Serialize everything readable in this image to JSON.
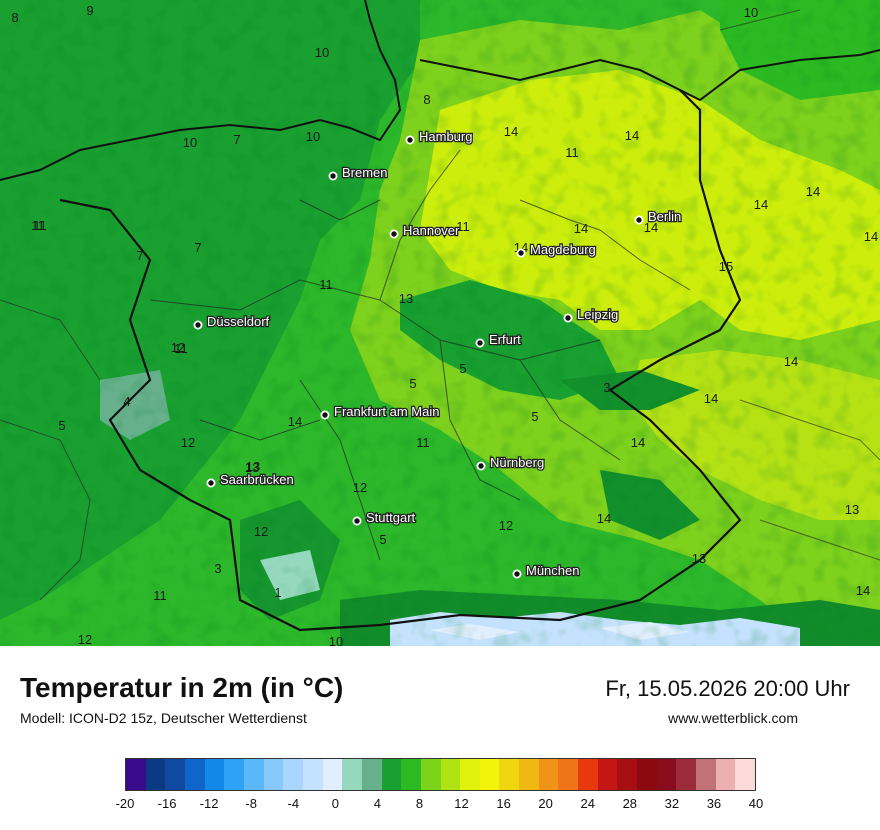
{
  "map": {
    "cities": [
      {
        "name": "Hamburg"
      },
      {
        "name": "Bremen"
      },
      {
        "name": "Hannover"
      },
      {
        "name": "Berlin"
      },
      {
        "name": "Magdeburg"
      },
      {
        "name": "Leipzig"
      },
      {
        "name": "Düsseldorf"
      },
      {
        "name": "Erfurt"
      },
      {
        "name": "Frankfurt am Main"
      },
      {
        "name": "Nürnberg"
      },
      {
        "name": "Saarbrücken"
      },
      {
        "name": "Stuttgart"
      },
      {
        "name": "München"
      }
    ],
    "values": [
      "9",
      "8",
      "10",
      "10",
      "8",
      "7",
      "10",
      "10",
      "11",
      "7",
      "7",
      "11",
      "11",
      "14",
      "14",
      "11",
      "14",
      "14",
      "14",
      "14",
      "14",
      "14",
      "13",
      "15",
      "13",
      "13",
      "11",
      "5",
      "5",
      "5",
      "4",
      "3",
      "14",
      "14",
      "12",
      "14",
      "12",
      "13",
      "11",
      "12",
      "11",
      "12",
      "14",
      "5",
      "12",
      "13",
      "14",
      "14",
      "3",
      "1",
      "11",
      "12",
      "10",
      "5"
    ]
  },
  "footer": {
    "title": "Temperatur in 2m (in °C)",
    "model": "Modell: ICON-D2 15z, Deutscher Wetterdienst",
    "datetime": "Fr, 15.05.2026 20:00 Uhr",
    "website": "www.wetterblick.com"
  },
  "legend": {
    "colors": [
      "#3a0a8c",
      "#0c3a82",
      "#0f4aa0",
      "#1066c8",
      "#1388e8",
      "#2ea2f4",
      "#5ab8f8",
      "#86c8fa",
      "#a8d6fc",
      "#c4e2fd",
      "#e0eefe",
      "#96d8be",
      "#66b08c",
      "#18a030",
      "#2cba22",
      "#7cd41a",
      "#b0e214",
      "#e0f20c",
      "#f2f40a",
      "#f0d60e",
      "#f0b812",
      "#f09418",
      "#f07418",
      "#e8380e",
      "#c41614",
      "#a80f12",
      "#8c0a0e",
      "#880c1c",
      "#9a2c3a",
      "#c07276",
      "#ecb0b0",
      "#fcdada"
    ],
    "ticks": [
      "-20",
      "-16",
      "-12",
      "-8",
      "-4",
      "0",
      "4",
      "8",
      "12",
      "16",
      "20",
      "24",
      "28",
      "32",
      "36",
      "40"
    ]
  }
}
